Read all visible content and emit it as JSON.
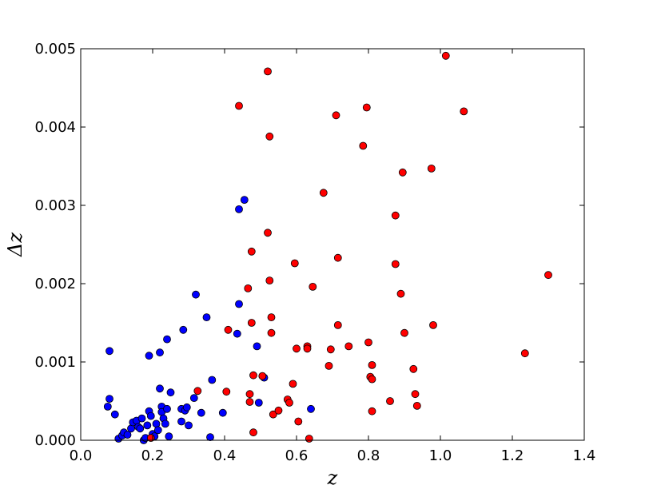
{
  "chart_data": {
    "type": "scatter",
    "title": "",
    "xlabel": "z",
    "ylabel": "Δz",
    "xlim": [
      0.0,
      1.4
    ],
    "ylim": [
      0.0,
      0.005
    ],
    "xticks": [
      0.0,
      0.2,
      0.4,
      0.6,
      0.8,
      1.0,
      1.2,
      1.4
    ],
    "yticks": [
      0.0,
      0.001,
      0.002,
      0.003,
      0.004,
      0.005
    ],
    "xtick_labels": [
      "0.0",
      "0.2",
      "0.4",
      "0.6",
      "0.8",
      "1.0",
      "1.2",
      "1.4"
    ],
    "ytick_labels": [
      "0.000",
      "0.001",
      "0.002",
      "0.003",
      "0.004",
      "0.005"
    ],
    "grid": false,
    "legend": "none",
    "series": [
      {
        "color": "#0000ff",
        "points": [
          [
            0.075,
            0.00043
          ],
          [
            0.08,
            0.00053
          ],
          [
            0.08,
            0.00114
          ],
          [
            0.095,
            0.00033
          ],
          [
            0.105,
            2e-05
          ],
          [
            0.115,
            6e-05
          ],
          [
            0.12,
            0.0001
          ],
          [
            0.13,
            7e-05
          ],
          [
            0.14,
            0.00015
          ],
          [
            0.145,
            0.00023
          ],
          [
            0.155,
            0.00025
          ],
          [
            0.16,
            0.00017
          ],
          [
            0.165,
            0.00015
          ],
          [
            0.17,
            0.00028
          ],
          [
            0.175,
            0.0
          ],
          [
            0.18,
            3e-05
          ],
          [
            0.185,
            0.00019
          ],
          [
            0.19,
            0.00108
          ],
          [
            0.19,
            0.00037
          ],
          [
            0.195,
            0.00031
          ],
          [
            0.2,
            8e-05
          ],
          [
            0.205,
            5e-05
          ],
          [
            0.21,
            0.00021
          ],
          [
            0.215,
            0.00013
          ],
          [
            0.22,
            0.00066
          ],
          [
            0.22,
            0.00112
          ],
          [
            0.225,
            0.00043
          ],
          [
            0.225,
            0.00036
          ],
          [
            0.23,
            0.00028
          ],
          [
            0.235,
            0.00021
          ],
          [
            0.24,
            0.0004
          ],
          [
            0.24,
            0.00129
          ],
          [
            0.245,
            5e-05
          ],
          [
            0.25,
            0.00061
          ],
          [
            0.28,
            0.0004
          ],
          [
            0.28,
            0.00024
          ],
          [
            0.285,
            0.00141
          ],
          [
            0.29,
            0.00038
          ],
          [
            0.295,
            0.00042
          ],
          [
            0.3,
            0.00019
          ],
          [
            0.315,
            0.00054
          ],
          [
            0.32,
            0.00186
          ],
          [
            0.335,
            0.00035
          ],
          [
            0.35,
            0.00157
          ],
          [
            0.36,
            4e-05
          ],
          [
            0.365,
            0.00077
          ],
          [
            0.395,
            0.00035
          ],
          [
            0.435,
            0.00136
          ],
          [
            0.44,
            0.00174
          ],
          [
            0.44,
            0.00295
          ],
          [
            0.455,
            0.00307
          ],
          [
            0.49,
            0.0012
          ],
          [
            0.495,
            0.00048
          ],
          [
            0.51,
            0.0008
          ],
          [
            0.64,
            0.0004
          ]
        ]
      },
      {
        "color": "#ff0000",
        "points": [
          [
            0.195,
            3e-05
          ],
          [
            0.325,
            0.00063
          ],
          [
            0.41,
            0.00141
          ],
          [
            0.405,
            0.00062
          ],
          [
            0.44,
            0.00427
          ],
          [
            0.465,
            0.00194
          ],
          [
            0.47,
            0.00059
          ],
          [
            0.47,
            0.00049
          ],
          [
            0.475,
            0.00241
          ],
          [
            0.475,
            0.0015
          ],
          [
            0.48,
            0.00083
          ],
          [
            0.48,
            0.0001
          ],
          [
            0.505,
            0.00082
          ],
          [
            0.52,
            0.00265
          ],
          [
            0.52,
            0.00471
          ],
          [
            0.525,
            0.00388
          ],
          [
            0.525,
            0.00204
          ],
          [
            0.53,
            0.00157
          ],
          [
            0.53,
            0.00137
          ],
          [
            0.535,
            0.00033
          ],
          [
            0.55,
            0.00038
          ],
          [
            0.575,
            0.00052
          ],
          [
            0.58,
            0.00048
          ],
          [
            0.59,
            0.00072
          ],
          [
            0.595,
            0.00226
          ],
          [
            0.6,
            0.00117
          ],
          [
            0.605,
            0.00024
          ],
          [
            0.63,
            0.0012
          ],
          [
            0.63,
            0.00117
          ],
          [
            0.635,
            2e-05
          ],
          [
            0.645,
            0.00196
          ],
          [
            0.675,
            0.00316
          ],
          [
            0.69,
            0.00095
          ],
          [
            0.695,
            0.00116
          ],
          [
            0.71,
            0.00415
          ],
          [
            0.715,
            0.00233
          ],
          [
            0.715,
            0.00147
          ],
          [
            0.745,
            0.0012
          ],
          [
            0.785,
            0.00376
          ],
          [
            0.795,
            0.00425
          ],
          [
            0.8,
            0.00125
          ],
          [
            0.805,
            0.00081
          ],
          [
            0.81,
            0.00096
          ],
          [
            0.81,
            0.00078
          ],
          [
            0.81,
            0.00037
          ],
          [
            0.86,
            0.0005
          ],
          [
            0.875,
            0.00225
          ],
          [
            0.875,
            0.00287
          ],
          [
            0.89,
            0.00187
          ],
          [
            0.895,
            0.00342
          ],
          [
            0.9,
            0.00137
          ],
          [
            0.925,
            0.00091
          ],
          [
            0.93,
            0.00059
          ],
          [
            0.935,
            0.00044
          ],
          [
            0.975,
            0.00347
          ],
          [
            0.98,
            0.00147
          ],
          [
            1.015,
            0.00491
          ],
          [
            1.065,
            0.0042
          ],
          [
            1.235,
            0.00111
          ],
          [
            1.3,
            0.00211
          ]
        ]
      }
    ]
  }
}
